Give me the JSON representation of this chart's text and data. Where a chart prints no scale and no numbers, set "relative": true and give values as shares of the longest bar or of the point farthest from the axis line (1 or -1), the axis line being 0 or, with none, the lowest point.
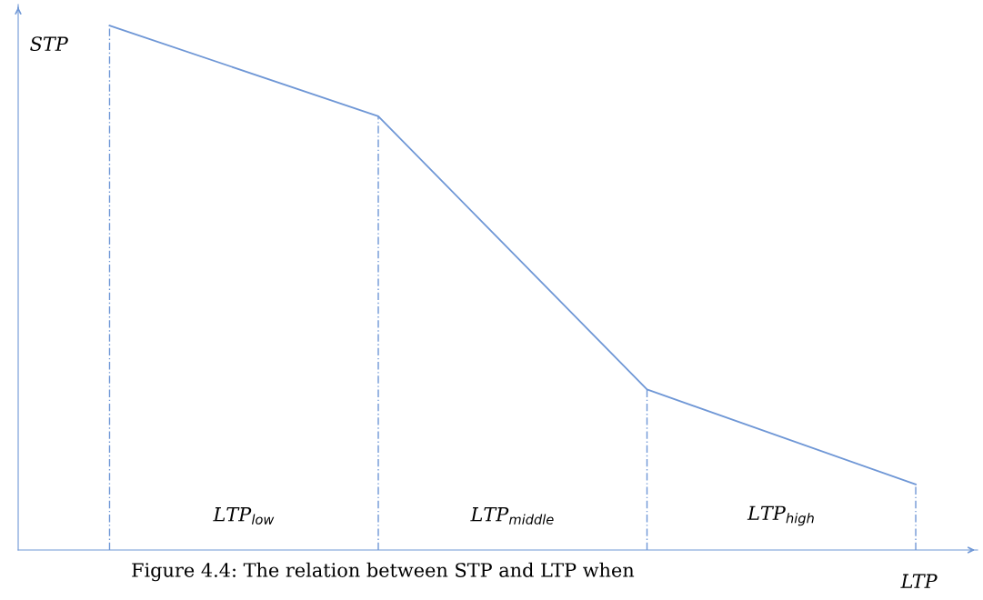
{
  "chart_data": {
    "type": "line",
    "relative": true,
    "categories": [
      null,
      null,
      null,
      null
    ],
    "series": [
      {
        "color": "#6f97d6",
        "values": [
          1,
          0.827,
          0.306,
          0.125
        ]
      }
    ],
    "xlabel": "LTP",
    "ylabel": "STP",
    "annotations": [
      "LTP$_{low}$",
      "LTP$_{middle}$",
      "LTP$_{high}$",
      "Figure 4.4: The relation between STP and LTP when"
    ]
  }
}
